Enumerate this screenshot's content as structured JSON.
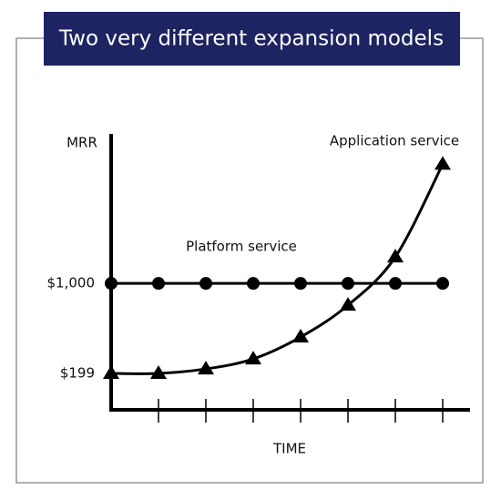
{
  "chart_data": {
    "type": "line",
    "title": "Two very different expansion models",
    "y_label": "MRR",
    "x_label": "TIME",
    "categories": [
      null,
      null,
      null,
      null,
      null,
      null,
      null,
      null
    ],
    "series": [
      {
        "name": "Platform service",
        "color": "#000000",
        "marker": "circle",
        "values": [
          1000,
          1000,
          1000,
          1000,
          1000,
          1000,
          1000,
          1000
        ]
      },
      {
        "name": "Application service",
        "color": "#000000",
        "marker": "triangle",
        "values": [
          199,
          199,
          239,
          328,
          523,
          806,
          1235,
          2060
        ]
      }
    ],
    "ylim": [
      -125,
      2330
    ],
    "yticks": [
      {
        "value": 199,
        "label": "$199"
      },
      {
        "value": 1000,
        "label": "$1,000"
      }
    ],
    "grid": false
  }
}
